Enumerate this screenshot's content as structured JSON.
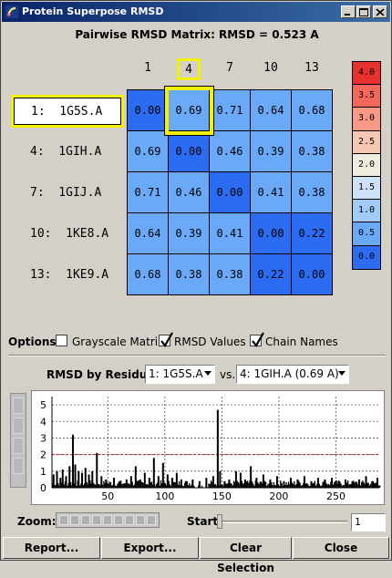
{
  "window": {
    "title": "Protein Superpose RMSD"
  },
  "matrix": {
    "title": "Pairwise RMSD Matrix:  RMSD = 0.523 A",
    "columns": [
      "1",
      "4",
      "7",
      "10",
      "13"
    ],
    "selected_column": "4",
    "rows": [
      {
        "label": "1:  1G5S.A",
        "values": [
          "0.00",
          "0.69",
          "0.71",
          "0.64",
          "0.68"
        ]
      },
      {
        "label": "4:  1GIH.A",
        "values": [
          "0.69",
          "0.00",
          "0.46",
          "0.39",
          "0.38"
        ]
      },
      {
        "label": "7:  1GIJ.A",
        "values": [
          "0.71",
          "0.46",
          "0.00",
          "0.41",
          "0.38"
        ]
      },
      {
        "label": "10:  1KE8.A",
        "values": [
          "0.64",
          "0.39",
          "0.41",
          "0.00",
          "0.22"
        ]
      },
      {
        "label": "13:  1KE9.A",
        "values": [
          "0.68",
          "0.38",
          "0.38",
          "0.22",
          "0.00"
        ]
      }
    ],
    "selected_row": "1:  1G5S.A",
    "selected_cell": "0.69"
  },
  "scale": {
    "entries": [
      {
        "label": "4.0",
        "color": "#e8302e"
      },
      {
        "label": "3.5",
        "color": "#f4675a"
      },
      {
        "label": "3.0",
        "color": "#f89a85"
      },
      {
        "label": "2.5",
        "color": "#f6c8b4"
      },
      {
        "label": "2.0",
        "color": "#eeebdf"
      },
      {
        "label": "1.5",
        "color": "#cde2f8"
      },
      {
        "label": "1.0",
        "color": "#a3cbf8"
      },
      {
        "label": "0.5",
        "color": "#6aa9f8"
      },
      {
        "label": "0.0",
        "color": "#2c6cf2"
      }
    ]
  },
  "options": {
    "label": "Options:",
    "grayscale": {
      "label": "Grayscale Matrix",
      "checked": false
    },
    "rmsd_values": {
      "label": "RMSD Values",
      "checked": true
    },
    "chain_names": {
      "label": "Chain Names",
      "checked": true
    }
  },
  "residue": {
    "label": "RMSD by Residue:",
    "chain_a": "1: 1G5S.A",
    "vs": "vs.",
    "chain_b": "4: 1GIH.A (0.69 A)"
  },
  "zoom": {
    "label": "Zoom:"
  },
  "start": {
    "label": "Start:",
    "value": "1"
  },
  "buttons": {
    "report": "Report...",
    "export": "Export...",
    "clear": "Clear Selection",
    "close": "Close"
  },
  "chart_data": {
    "type": "bar",
    "xlim": [
      1,
      288
    ],
    "ylim": [
      0,
      5.5
    ],
    "x_ticks": [
      "50",
      "100",
      "150",
      "200",
      "250"
    ],
    "y_ticks": [
      "0",
      "1",
      "2",
      "3",
      "4",
      "5"
    ],
    "threshold": 2.0,
    "threshold_color": "#c02020",
    "peaks": [
      {
        "x": 2,
        "y": 0.8
      },
      {
        "x": 5,
        "y": 1.0
      },
      {
        "x": 8,
        "y": 0.6
      },
      {
        "x": 10,
        "y": 1.1
      },
      {
        "x": 13,
        "y": 0.7
      },
      {
        "x": 16,
        "y": 1.3
      },
      {
        "x": 19,
        "y": 3.2
      },
      {
        "x": 21,
        "y": 1.4
      },
      {
        "x": 24,
        "y": 1.0
      },
      {
        "x": 27,
        "y": 0.9
      },
      {
        "x": 30,
        "y": 1.2
      },
      {
        "x": 33,
        "y": 0.8
      },
      {
        "x": 36,
        "y": 1.0
      },
      {
        "x": 40,
        "y": 2.1
      },
      {
        "x": 44,
        "y": 0.7
      },
      {
        "x": 48,
        "y": 0.5
      },
      {
        "x": 55,
        "y": 0.6
      },
      {
        "x": 60,
        "y": 0.4
      },
      {
        "x": 66,
        "y": 0.5
      },
      {
        "x": 70,
        "y": 0.7
      },
      {
        "x": 74,
        "y": 1.3
      },
      {
        "x": 78,
        "y": 0.5
      },
      {
        "x": 82,
        "y": 0.9
      },
      {
        "x": 86,
        "y": 0.6
      },
      {
        "x": 90,
        "y": 1.8
      },
      {
        "x": 94,
        "y": 0.7
      },
      {
        "x": 98,
        "y": 1.5
      },
      {
        "x": 102,
        "y": 0.8
      },
      {
        "x": 106,
        "y": 0.6
      },
      {
        "x": 110,
        "y": 0.9
      },
      {
        "x": 114,
        "y": 0.5
      },
      {
        "x": 118,
        "y": 0.4
      },
      {
        "x": 124,
        "y": 0.5
      },
      {
        "x": 130,
        "y": 0.4
      },
      {
        "x": 136,
        "y": 0.6
      },
      {
        "x": 142,
        "y": 0.7
      },
      {
        "x": 146,
        "y": 4.7
      },
      {
        "x": 148,
        "y": 1.0
      },
      {
        "x": 152,
        "y": 0.4
      },
      {
        "x": 156,
        "y": 0.5
      },
      {
        "x": 162,
        "y": 1.0
      },
      {
        "x": 166,
        "y": 0.9
      },
      {
        "x": 170,
        "y": 0.5
      },
      {
        "x": 175,
        "y": 1.3
      },
      {
        "x": 180,
        "y": 0.6
      },
      {
        "x": 186,
        "y": 0.8
      },
      {
        "x": 192,
        "y": 0.5
      },
      {
        "x": 198,
        "y": 0.7
      },
      {
        "x": 204,
        "y": 0.4
      },
      {
        "x": 210,
        "y": 0.6
      },
      {
        "x": 216,
        "y": 0.5
      },
      {
        "x": 222,
        "y": 0.7
      },
      {
        "x": 228,
        "y": 0.4
      },
      {
        "x": 234,
        "y": 0.6
      },
      {
        "x": 240,
        "y": 0.5
      },
      {
        "x": 246,
        "y": 0.6
      },
      {
        "x": 252,
        "y": 0.4
      },
      {
        "x": 258,
        "y": 0.5
      },
      {
        "x": 264,
        "y": 0.4
      },
      {
        "x": 270,
        "y": 0.5
      },
      {
        "x": 276,
        "y": 0.7
      },
      {
        "x": 282,
        "y": 0.4
      },
      {
        "x": 286,
        "y": 0.6
      }
    ]
  }
}
